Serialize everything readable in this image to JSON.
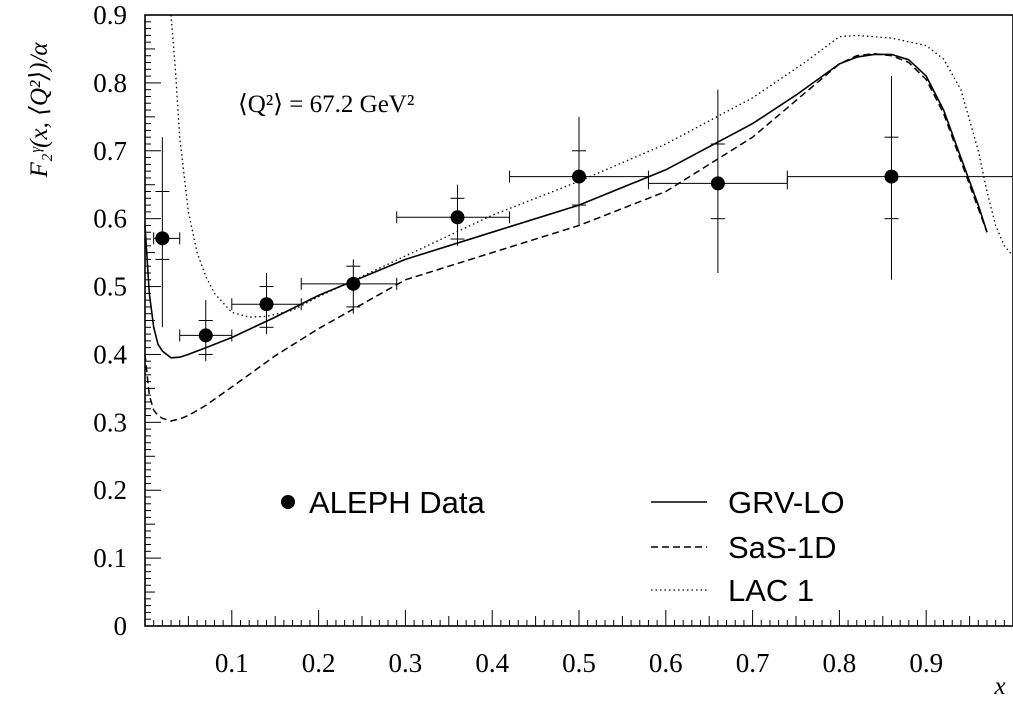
{
  "chart_data": {
    "type": "line",
    "title": "",
    "xlabel": "x",
    "ylabel": "F₂ᵞ(x, ⟨Q²⟩)/α",
    "xlim": [
      0.0,
      1.0
    ],
    "ylim": [
      0.0,
      0.9
    ],
    "grid": false,
    "legend_placement": "bottom",
    "x_ticks": [
      "0.1",
      "0.2",
      "0.3",
      "0.4",
      "0.5",
      "0.6",
      "0.7",
      "0.8",
      "0.9"
    ],
    "y_ticks": [
      "0",
      "0.1",
      "0.2",
      "0.3",
      "0.4",
      "0.5",
      "0.6",
      "0.7",
      "0.8",
      "0.9"
    ],
    "annotation": "⟨Q²⟩ = 67.2 GeV²",
    "data_series": {
      "name": "ALEPH Data",
      "points": [
        {
          "x": 0.02,
          "y": 0.571,
          "xerr_lo": 0.01,
          "xerr_hi": 0.02,
          "y_stat_lo": 0.54,
          "y_stat_hi": 0.64,
          "y_tot_lo": 0.44,
          "y_tot_hi": 0.72
        },
        {
          "x": 0.07,
          "y": 0.428,
          "xerr_lo": 0.03,
          "xerr_hi": 0.03,
          "y_stat_lo": 0.4,
          "y_stat_hi": 0.45,
          "y_tot_lo": 0.39,
          "y_tot_hi": 0.48
        },
        {
          "x": 0.14,
          "y": 0.474,
          "xerr_lo": 0.04,
          "xerr_hi": 0.04,
          "y_stat_lo": 0.44,
          "y_stat_hi": 0.5,
          "y_tot_lo": 0.43,
          "y_tot_hi": 0.52
        },
        {
          "x": 0.24,
          "y": 0.504,
          "xerr_lo": 0.06,
          "xerr_hi": 0.05,
          "y_stat_lo": 0.47,
          "y_stat_hi": 0.53,
          "y_tot_lo": 0.46,
          "y_tot_hi": 0.54
        },
        {
          "x": 0.36,
          "y": 0.602,
          "xerr_lo": 0.07,
          "xerr_hi": 0.06,
          "y_stat_lo": 0.57,
          "y_stat_hi": 0.63,
          "y_tot_lo": 0.56,
          "y_tot_hi": 0.65
        },
        {
          "x": 0.5,
          "y": 0.662,
          "xerr_lo": 0.08,
          "xerr_hi": 0.08,
          "y_stat_lo": 0.62,
          "y_stat_hi": 0.7,
          "y_tot_lo": 0.59,
          "y_tot_hi": 0.75
        },
        {
          "x": 0.66,
          "y": 0.652,
          "xerr_lo": 0.08,
          "xerr_hi": 0.08,
          "y_stat_lo": 0.6,
          "y_stat_hi": 0.71,
          "y_tot_lo": 0.52,
          "y_tot_hi": 0.79
        },
        {
          "x": 0.86,
          "y": 0.662,
          "xerr_lo": 0.12,
          "xerr_hi": 0.14,
          "y_stat_lo": 0.6,
          "y_stat_hi": 0.72,
          "y_tot_lo": 0.51,
          "y_tot_hi": 0.81
        }
      ]
    },
    "series": [
      {
        "name": "GRV-LO",
        "style": "solid",
        "x": [
          0.0,
          0.005,
          0.01,
          0.015,
          0.02,
          0.03,
          0.04,
          0.05,
          0.07,
          0.1,
          0.15,
          0.2,
          0.3,
          0.4,
          0.5,
          0.6,
          0.7,
          0.75,
          0.8,
          0.82,
          0.84,
          0.86,
          0.88,
          0.9,
          0.92,
          0.94,
          0.96,
          0.97
        ],
        "y": [
          0.59,
          0.49,
          0.44,
          0.415,
          0.405,
          0.395,
          0.396,
          0.4,
          0.41,
          0.425,
          0.455,
          0.487,
          0.54,
          0.58,
          0.62,
          0.672,
          0.74,
          0.782,
          0.828,
          0.838,
          0.842,
          0.842,
          0.834,
          0.81,
          0.76,
          0.69,
          0.62,
          0.58
        ]
      },
      {
        "name": "SaS-1D",
        "style": "dashed",
        "x": [
          0.0,
          0.005,
          0.01,
          0.015,
          0.02,
          0.03,
          0.04,
          0.05,
          0.07,
          0.1,
          0.15,
          0.2,
          0.3,
          0.4,
          0.5,
          0.6,
          0.7,
          0.75,
          0.8,
          0.82,
          0.84,
          0.86,
          0.88,
          0.9,
          0.92,
          0.94,
          0.96,
          0.97
        ],
        "y": [
          0.4,
          0.34,
          0.318,
          0.31,
          0.306,
          0.302,
          0.305,
          0.31,
          0.325,
          0.352,
          0.398,
          0.438,
          0.51,
          0.55,
          0.59,
          0.64,
          0.72,
          0.774,
          0.828,
          0.84,
          0.843,
          0.84,
          0.83,
          0.805,
          0.755,
          0.685,
          0.615,
          0.58
        ]
      },
      {
        "name": "LAC 1",
        "style": "dotted",
        "x": [
          0.03,
          0.035,
          0.04,
          0.05,
          0.06,
          0.07,
          0.08,
          0.1,
          0.12,
          0.14,
          0.17,
          0.2,
          0.3,
          0.4,
          0.5,
          0.6,
          0.7,
          0.76,
          0.8,
          0.82,
          0.86,
          0.9,
          0.92,
          0.94,
          0.96,
          0.97,
          0.98,
          0.99,
          1.0
        ],
        "y": [
          0.9,
          0.82,
          0.72,
          0.61,
          0.55,
          0.515,
          0.49,
          0.462,
          0.455,
          0.456,
          0.465,
          0.485,
          0.545,
          0.605,
          0.655,
          0.71,
          0.778,
          0.83,
          0.868,
          0.87,
          0.866,
          0.855,
          0.835,
          0.79,
          0.7,
          0.64,
          0.59,
          0.56,
          0.545
        ]
      }
    ]
  }
}
